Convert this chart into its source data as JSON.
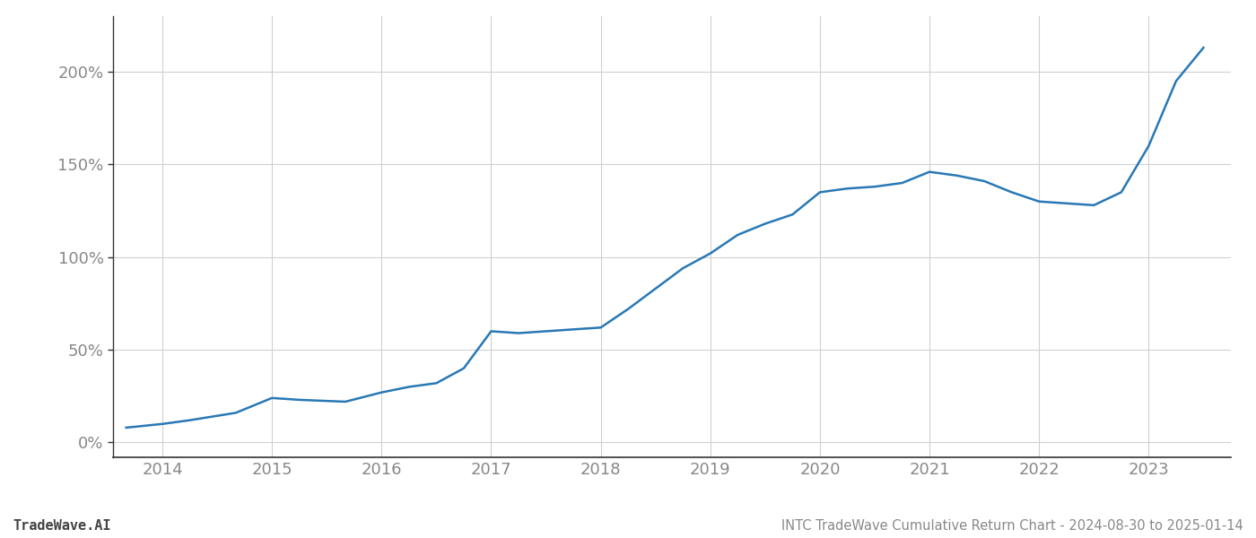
{
  "title": "INTC TradeWave Cumulative Return Chart - 2024-08-30 to 2025-01-14",
  "watermark": "TradeWave.AI",
  "line_color": "#2878b5",
  "background_color": "#ffffff",
  "grid_color": "#d0d0d0",
  "spine_color": "#333333",
  "label_color": "#888888",
  "x_years": [
    2014,
    2015,
    2016,
    2017,
    2018,
    2019,
    2020,
    2021,
    2022,
    2023
  ],
  "x_data": [
    2013.67,
    2014.0,
    2014.25,
    2014.67,
    2015.0,
    2015.25,
    2015.67,
    2016.0,
    2016.25,
    2016.5,
    2016.75,
    2017.0,
    2017.25,
    2017.5,
    2017.75,
    2018.0,
    2018.25,
    2018.5,
    2018.75,
    2019.0,
    2019.25,
    2019.5,
    2019.75,
    2020.0,
    2020.25,
    2020.5,
    2020.75,
    2021.0,
    2021.25,
    2021.5,
    2021.75,
    2022.0,
    2022.25,
    2022.5,
    2022.75,
    2023.0,
    2023.25,
    2023.5
  ],
  "y_data": [
    8,
    10,
    12,
    16,
    24,
    23,
    22,
    27,
    30,
    32,
    40,
    60,
    59,
    60,
    61,
    62,
    72,
    83,
    94,
    102,
    112,
    118,
    123,
    135,
    137,
    138,
    140,
    146,
    144,
    141,
    135,
    130,
    129,
    128,
    135,
    160,
    195,
    213
  ],
  "ylim": [
    -8,
    230
  ],
  "yticks": [
    0,
    50,
    100,
    150,
    200
  ],
  "ytick_labels": [
    "0%",
    "50%",
    "100%",
    "150%",
    "200%"
  ],
  "xlim": [
    2013.55,
    2023.75
  ],
  "line_width": 1.8,
  "title_fontsize": 10.5,
  "tick_fontsize": 13,
  "watermark_fontsize": 11
}
